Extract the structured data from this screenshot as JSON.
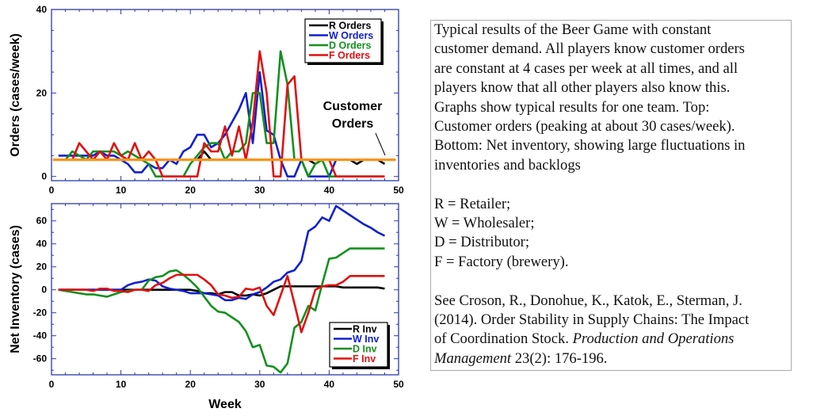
{
  "chart_data": [
    {
      "type": "line",
      "ylabel": "Orders (cases/week)",
      "xlabel": "",
      "xlim": [
        0,
        50
      ],
      "ylim": [
        -1,
        40
      ],
      "xticks": [
        0,
        10,
        20,
        30,
        40,
        50
      ],
      "yticks": [
        0,
        20,
        40
      ],
      "grid": false,
      "legend_position": "top-right",
      "annotation": [
        "Customer",
        "Orders"
      ],
      "x": [
        1,
        2,
        3,
        4,
        5,
        6,
        7,
        8,
        9,
        10,
        11,
        12,
        13,
        14,
        15,
        16,
        17,
        18,
        19,
        20,
        21,
        22,
        23,
        24,
        25,
        26,
        27,
        28,
        29,
        30,
        31,
        32,
        33,
        34,
        35,
        36,
        37,
        38,
        39,
        40,
        41,
        42,
        43,
        44,
        45,
        46,
        47,
        48
      ],
      "series": [
        {
          "name": "R Orders",
          "color": "#000000",
          "values": [
            4,
            4,
            4,
            4,
            4,
            4,
            4,
            4,
            4,
            4,
            4,
            4,
            4,
            4,
            4,
            4,
            4,
            4,
            4,
            4,
            4,
            6,
            4,
            4,
            4,
            4,
            4,
            4,
            4,
            4,
            4,
            4,
            4,
            4,
            4,
            4,
            4,
            3,
            4,
            4,
            4,
            4,
            4,
            3,
            4,
            4,
            4,
            3
          ]
        },
        {
          "name": "W Orders",
          "color": "#1020d0",
          "values": [
            5,
            5,
            5,
            5,
            5,
            5,
            6,
            5,
            5,
            4,
            3,
            1,
            1,
            3,
            2,
            2,
            4,
            3,
            6,
            7,
            10,
            10,
            7,
            8,
            10,
            13,
            16,
            20,
            8,
            25,
            11,
            10,
            4,
            0,
            0,
            4,
            0,
            0,
            0,
            0,
            4,
            4,
            4,
            4,
            4,
            4,
            4,
            4
          ]
        },
        {
          "name": "D Orders",
          "color": "#14901e",
          "values": [
            4,
            4,
            6,
            5,
            4,
            6,
            6,
            6,
            6,
            5,
            6,
            5,
            4,
            3,
            0,
            0,
            0,
            0,
            0,
            3,
            5,
            7,
            8,
            8,
            4,
            6,
            6,
            8,
            20,
            20,
            8,
            8,
            30,
            22,
            4,
            4,
            0,
            3,
            4,
            0,
            0,
            0,
            0,
            0,
            0,
            0,
            0,
            0
          ]
        },
        {
          "name": "F Orders",
          "color": "#e01010",
          "values": [
            4,
            4,
            4,
            8,
            6,
            4,
            6,
            4,
            8,
            5,
            4,
            8,
            4,
            6,
            4,
            0,
            0,
            0,
            0,
            0,
            0,
            8,
            6,
            6,
            12,
            5,
            12,
            4,
            13,
            30,
            20,
            0,
            0,
            22,
            24,
            4,
            4,
            4,
            4,
            4,
            0,
            0,
            0,
            0,
            0,
            0,
            0,
            0
          ]
        },
        {
          "name": "Customer Orders",
          "color": "#f5961e",
          "values": [
            4,
            4,
            4,
            4,
            4,
            4,
            4,
            4,
            4,
            4,
            4,
            4,
            4,
            4,
            4,
            4,
            4,
            4,
            4,
            4,
            4,
            4,
            4,
            4,
            4,
            4,
            4,
            4,
            4,
            4,
            4,
            4,
            4,
            4,
            4,
            4,
            4,
            4,
            4,
            4,
            4,
            4,
            4,
            4,
            4,
            4,
            4,
            4
          ]
        }
      ]
    },
    {
      "type": "line",
      "ylabel": "Net Inventory (cases)",
      "xlabel": "Week",
      "xlim": [
        0,
        50
      ],
      "ylim": [
        -74,
        75
      ],
      "xticks": [
        0,
        10,
        20,
        30,
        40,
        50
      ],
      "yticks": [
        -60,
        -40,
        -20,
        0,
        20,
        40,
        60
      ],
      "grid": false,
      "legend_position": "bottom-right",
      "x": [
        1,
        2,
        3,
        4,
        5,
        6,
        7,
        8,
        9,
        10,
        11,
        12,
        13,
        14,
        15,
        16,
        17,
        18,
        19,
        20,
        21,
        22,
        23,
        24,
        25,
        26,
        27,
        28,
        29,
        30,
        31,
        32,
        33,
        34,
        35,
        36,
        37,
        38,
        39,
        40,
        41,
        42,
        43,
        44,
        45,
        46,
        47,
        48
      ],
      "series": [
        {
          "name": "R Inv",
          "color": "#000000",
          "values": [
            0,
            0,
            0,
            0,
            0,
            0,
            0,
            0,
            0,
            0,
            0,
            0,
            0,
            0,
            0,
            0,
            0,
            0,
            0,
            0,
            -1,
            -3,
            -3,
            -4,
            -2,
            -2,
            -5,
            -5,
            -4,
            -5,
            -3,
            0,
            3,
            3,
            3,
            3,
            3,
            3,
            3,
            3,
            3,
            2,
            2,
            2,
            2,
            2,
            2,
            1
          ]
        },
        {
          "name": "W Inv",
          "color": "#1020d0",
          "values": [
            0,
            0,
            0,
            0,
            0,
            0,
            0,
            0,
            0,
            0,
            4,
            6,
            7,
            9,
            8,
            3,
            1,
            0,
            -1,
            -3,
            -3,
            -3,
            -4,
            -5,
            -9,
            -9,
            -7,
            -8,
            -4,
            -2,
            2,
            7,
            9,
            15,
            17,
            25,
            51,
            55,
            63,
            60,
            73,
            69,
            65,
            61,
            57,
            54,
            50,
            47
          ]
        },
        {
          "name": "D Inv",
          "color": "#14901e",
          "values": [
            0,
            -1,
            -2,
            -3,
            -4,
            -4,
            -5,
            -6,
            -4,
            -2,
            -1,
            0,
            0,
            8,
            11,
            12,
            16,
            17,
            13,
            8,
            2,
            -6,
            -14,
            -19,
            -20,
            -24,
            -28,
            -36,
            -50,
            -48,
            -66,
            -67,
            -72,
            -64,
            -33,
            -28,
            -14,
            -18,
            5,
            27,
            28,
            32,
            36,
            36,
            36,
            36,
            36,
            36
          ]
        },
        {
          "name": "F Inv",
          "color": "#e01010",
          "values": [
            0,
            0,
            0,
            0,
            0,
            -1,
            1,
            1,
            -1,
            -1,
            -2,
            0,
            0,
            -1,
            4,
            6,
            10,
            13,
            13,
            13,
            13,
            9,
            4,
            -4,
            -5,
            -7,
            -6,
            1,
            0,
            2,
            -14,
            -22,
            -5,
            12,
            -12,
            -37,
            -20,
            0,
            3,
            4,
            4,
            7,
            12,
            12,
            12,
            12,
            12,
            12
          ]
        }
      ]
    }
  ],
  "caption": {
    "paragraph1": [
      "Typical results of the Beer Game with constant",
      "customer demand.  All players know customer orders",
      "are constant at 4 cases per week at all times, and all",
      "players know that all other players also know this.",
      "Graphs show typical results for one team.  Top:",
      "Customer orders (peaking at about 30 cases/week).",
      "Bottom: Net inventory, showing large fluctuations in",
      "inventories and backlogs"
    ],
    "legend_key": [
      "R = Retailer;",
      "W = Wholesaler;",
      "D = Distributor;",
      "F = Factory (brewery)."
    ],
    "reference": {
      "line1": "See Croson, R., Donohue, K., Katok, E., Sterman, J.",
      "line2": "(2014). Order Stability in Supply Chains: The Impact",
      "line3_plain": "of Coordination Stock. ",
      "line3_italic": "Production and Operations",
      "line4_italic": "Management",
      "line4_plain": " 23(2): 176-196."
    }
  }
}
